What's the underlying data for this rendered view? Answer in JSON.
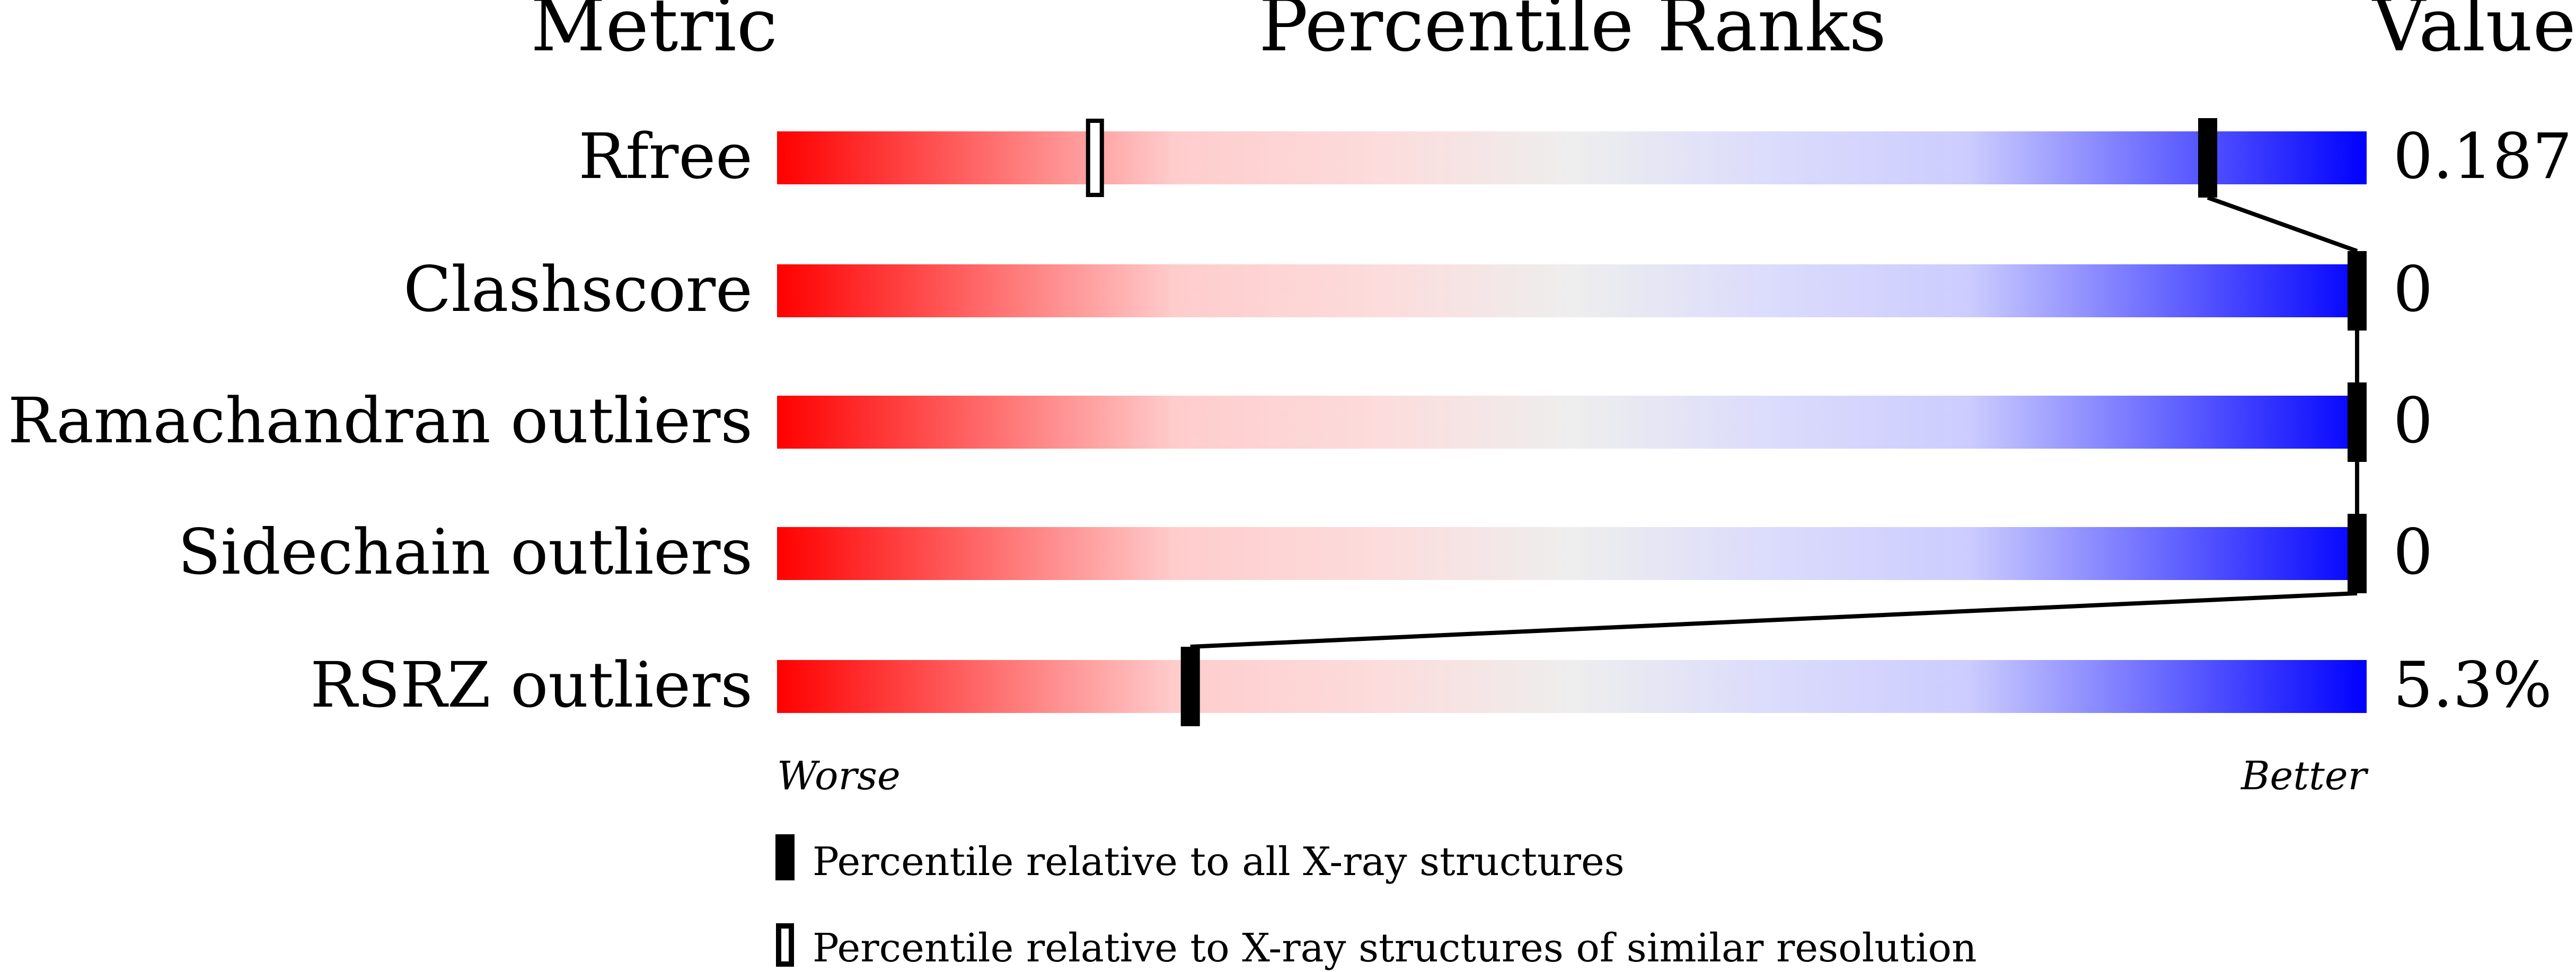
{
  "chart_data": {
    "type": "bar",
    "headers": {
      "metric": "Metric",
      "ranks": "Percentile Ranks",
      "value": "Value"
    },
    "xlim": [
      0,
      100
    ],
    "axis_labels": {
      "left": "Worse",
      "right": "Better"
    },
    "metrics": [
      {
        "name": "Rfree",
        "value": "0.187",
        "percentile_all": 90,
        "percentile_similar": 20
      },
      {
        "name": "Clashscore",
        "value": "0",
        "percentile_all": 100,
        "percentile_similar": null
      },
      {
        "name": "Ramachandran outliers",
        "value": "0",
        "percentile_all": 100,
        "percentile_similar": null
      },
      {
        "name": "Sidechain outliers",
        "value": "0",
        "percentile_all": 100,
        "percentile_similar": null
      },
      {
        "name": "RSRZ outliers",
        "value": "5.3%",
        "percentile_all": 26,
        "percentile_similar": null
      }
    ],
    "legend": [
      {
        "marker": "filled",
        "label": "Percentile relative to all X-ray structures"
      },
      {
        "marker": "open",
        "label": "Percentile relative to X-ray structures of similar resolution"
      }
    ],
    "colors": {
      "worse": "#ff0000",
      "middle": "#eeeeee",
      "better": "#0000ff",
      "marker": "#000000"
    }
  }
}
